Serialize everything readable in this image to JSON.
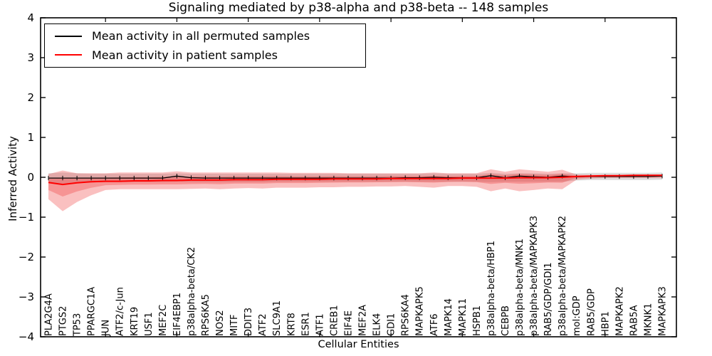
{
  "title": "Signaling mediated by p38-alpha and p38-beta -- 148 samples",
  "axes": {
    "xlabel": "Cellular Entities",
    "ylabel": "Inferred Activity",
    "ytick_labels": [
      "4",
      "3",
      "2",
      "1",
      "0",
      "−1",
      "−2",
      "−3",
      "−4"
    ]
  },
  "legend": {
    "entries": [
      {
        "label": "Mean activity in all permuted samples",
        "color": "#000000"
      },
      {
        "label": "Mean activity in patient samples",
        "color": "#ff0000"
      }
    ]
  },
  "colors": {
    "patient_line": "#ff0000",
    "permuted_line": "#000000",
    "patient_band": "#f03030",
    "permuted_band": "#bbbbbb",
    "axis": "#000000"
  },
  "chart_data": {
    "type": "line",
    "title": "Signaling mediated by p38-alpha and p38-beta -- 148 samples",
    "xlabel": "Cellular Entities",
    "ylabel": "Inferred Activity",
    "ylim": [
      -4,
      4
    ],
    "yticks": [
      4,
      3,
      2,
      1,
      0,
      -1,
      -2,
      -3,
      -4
    ],
    "grid": false,
    "legend_position": "upper left",
    "categories": [
      "PLA2G4A",
      "PTGS2",
      "TP53",
      "PPARGC1A",
      "JUN",
      "ATF2/c-Jun",
      "KRT19",
      "USF1",
      "MEF2C",
      "EIF4EBP1",
      "p38alpha-beta/CK2",
      "RPS6KA5",
      "NOS2",
      "MITF",
      "DDIT3",
      "ATF2",
      "SLC9A1",
      "KRT8",
      "ESR1",
      "ATF1",
      "CREB1",
      "EIF4E",
      "MEF2A",
      "ELK4",
      "GDI1",
      "RPS6KA4",
      "MAPKAPK5",
      "ATF6",
      "MAPK14",
      "MAPK11",
      "HSPB1",
      "p38alpha-beta/HBP1",
      "CEBPB",
      "p38alpha-beta/MNK1",
      "p38alpha-beta/MAPKAPK3",
      "RAB5/GDP/GDI1",
      "p38alpha-beta/MAPKAPK2",
      "mol:GDP",
      "RAB5/GDP",
      "HBP1",
      "MAPKAPK2",
      "RAB5A",
      "MKNK1",
      "MAPKAPK3"
    ],
    "series": [
      {
        "name": "Mean activity in all permuted samples",
        "color": "#000000",
        "values": [
          -0.02,
          -0.02,
          -0.02,
          -0.02,
          -0.02,
          -0.02,
          -0.02,
          -0.02,
          -0.02,
          0.03,
          -0.01,
          -0.02,
          -0.02,
          -0.02,
          -0.02,
          -0.02,
          -0.02,
          -0.02,
          -0.02,
          -0.02,
          -0.02,
          -0.02,
          -0.02,
          -0.02,
          -0.02,
          -0.01,
          -0.01,
          0.0,
          -0.01,
          -0.01,
          -0.01,
          0.04,
          -0.01,
          0.03,
          0.01,
          0.0,
          0.03,
          0.01,
          0.02,
          0.02,
          0.02,
          0.02,
          0.02,
          0.03
        ]
      },
      {
        "name": "Mean activity in patient samples",
        "color": "#ff0000",
        "values": [
          -0.13,
          -0.18,
          -0.14,
          -0.11,
          -0.1,
          -0.1,
          -0.09,
          -0.09,
          -0.08,
          -0.08,
          -0.07,
          -0.07,
          -0.07,
          -0.06,
          -0.06,
          -0.06,
          -0.05,
          -0.05,
          -0.05,
          -0.05,
          -0.04,
          -0.04,
          -0.04,
          -0.04,
          -0.03,
          -0.03,
          -0.03,
          -0.03,
          -0.03,
          -0.02,
          -0.02,
          -0.02,
          -0.02,
          -0.01,
          -0.01,
          -0.01,
          0.0,
          0.02,
          0.03,
          0.04,
          0.04,
          0.05,
          0.05,
          0.05
        ]
      }
    ],
    "bands": [
      {
        "name": "permuted-samples-range",
        "color": "#bbbbbb",
        "high": [
          0.1,
          0.12,
          0.1,
          0.09,
          0.09,
          0.09,
          0.09,
          0.09,
          0.09,
          0.1,
          0.09,
          0.09,
          0.09,
          0.09,
          0.09,
          0.09,
          0.09,
          0.09,
          0.09,
          0.09,
          0.09,
          0.09,
          0.09,
          0.09,
          0.09,
          0.09,
          0.09,
          0.1,
          0.09,
          0.09,
          0.09,
          0.11,
          0.09,
          0.1,
          0.1,
          0.09,
          0.1,
          0.1,
          0.11,
          0.11,
          0.11,
          0.11,
          0.11,
          0.12
        ],
        "low": [
          -0.15,
          -0.18,
          -0.15,
          -0.13,
          -0.12,
          -0.12,
          -0.12,
          -0.12,
          -0.12,
          -0.11,
          -0.12,
          -0.12,
          -0.12,
          -0.12,
          -0.12,
          -0.12,
          -0.11,
          -0.11,
          -0.11,
          -0.11,
          -0.11,
          -0.11,
          -0.11,
          -0.11,
          -0.11,
          -0.11,
          -0.11,
          -0.11,
          -0.11,
          -0.11,
          -0.11,
          -0.12,
          -0.11,
          -0.11,
          -0.11,
          -0.11,
          -0.11,
          -0.08,
          -0.07,
          -0.07,
          -0.07,
          -0.07,
          -0.07,
          -0.06
        ]
      },
      {
        "name": "patient-samples-range",
        "color": "#f03030",
        "high": [
          0.08,
          0.17,
          0.1,
          0.1,
          0.1,
          0.12,
          0.12,
          0.12,
          0.12,
          0.15,
          0.12,
          0.12,
          0.12,
          0.12,
          0.12,
          0.12,
          0.12,
          0.11,
          0.11,
          0.11,
          0.11,
          0.1,
          0.1,
          0.1,
          0.1,
          0.1,
          0.1,
          0.12,
          0.1,
          0.1,
          0.1,
          0.2,
          0.14,
          0.2,
          0.17,
          0.14,
          0.19,
          0.07,
          0.06,
          0.06,
          0.06,
          0.07,
          0.07,
          0.07
        ],
        "low": [
          -0.55,
          -0.85,
          -0.62,
          -0.45,
          -0.32,
          -0.3,
          -0.3,
          -0.3,
          -0.3,
          -0.3,
          -0.29,
          -0.28,
          -0.3,
          -0.28,
          -0.27,
          -0.28,
          -0.26,
          -0.26,
          -0.26,
          -0.25,
          -0.25,
          -0.24,
          -0.24,
          -0.23,
          -0.23,
          -0.22,
          -0.24,
          -0.26,
          -0.22,
          -0.22,
          -0.24,
          -0.35,
          -0.28,
          -0.35,
          -0.32,
          -0.28,
          -0.3,
          -0.06,
          -0.03,
          -0.02,
          -0.02,
          -0.02,
          -0.02,
          -0.02
        ]
      }
    ]
  }
}
